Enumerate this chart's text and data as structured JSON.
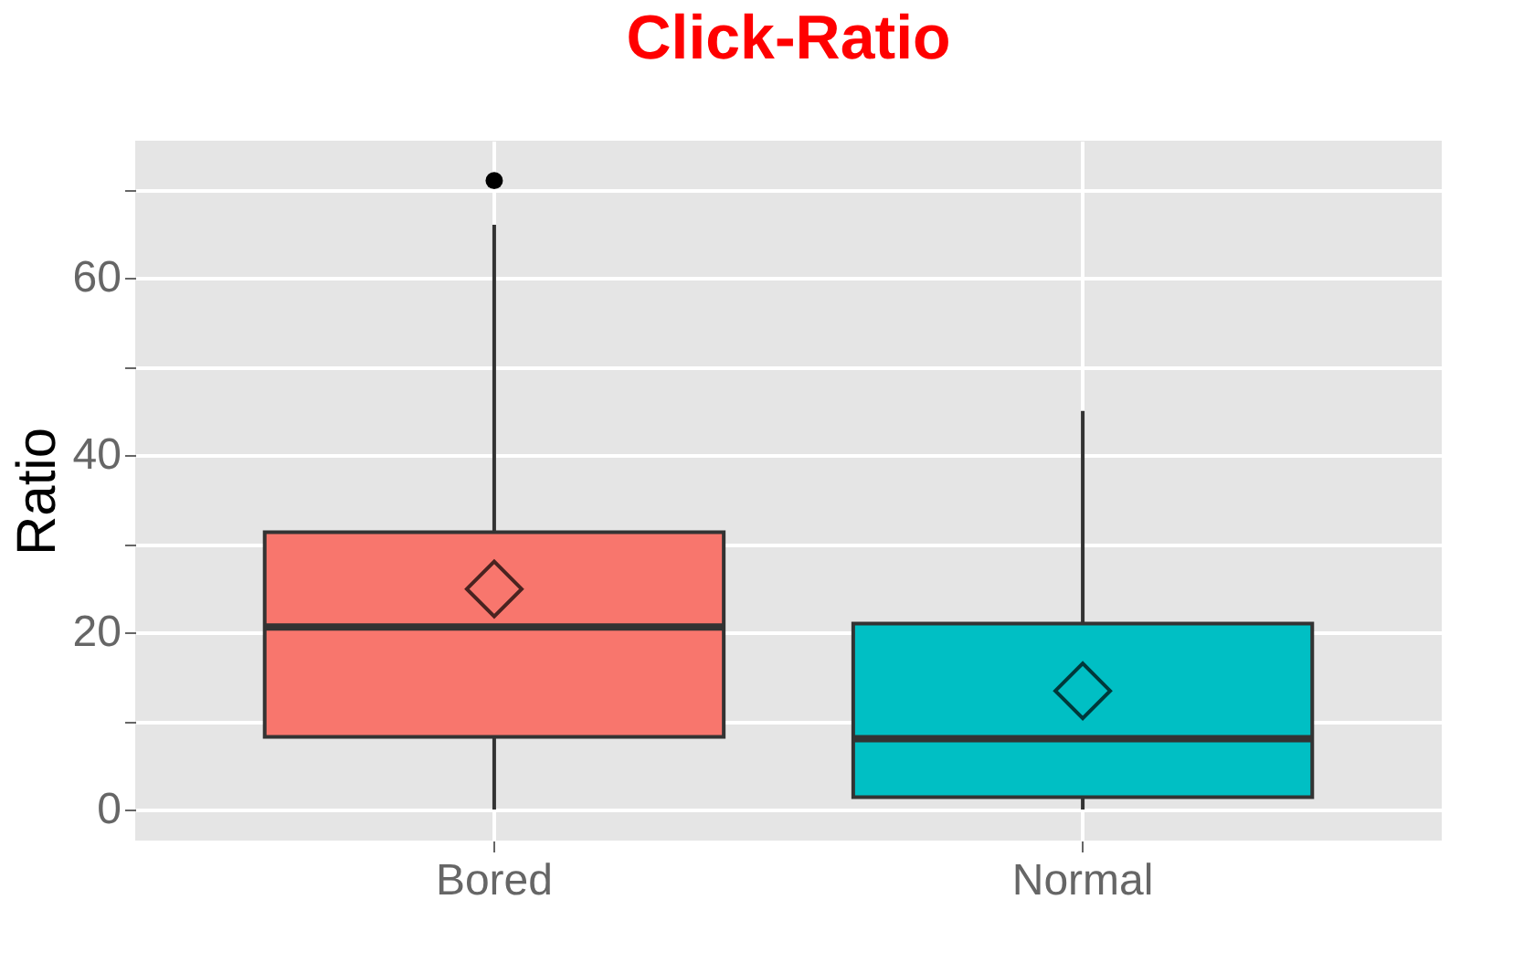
{
  "chart_data": {
    "type": "box",
    "title": "Click-Ratio",
    "ylabel": "Ratio",
    "categories": [
      "Bored",
      "Normal"
    ],
    "colors": [
      "#f8766d",
      "#00bfc4"
    ],
    "boxes": [
      {
        "low": 0,
        "q1": 8.2,
        "median": 20.6,
        "q3": 31.3,
        "high": 66,
        "mean": 24.9,
        "outliers": [
          71
        ]
      },
      {
        "low": 0,
        "q1": 1.4,
        "median": 8,
        "q3": 21,
        "high": 45,
        "mean": 13.4
      }
    ],
    "ylim": [
      -3.5,
      75.5
    ],
    "yticks": [
      0,
      {
        "value": 10,
        "label": null
      },
      20,
      {
        "value": 30,
        "label": null
      },
      40,
      {
        "value": 50,
        "label": null
      },
      60,
      {
        "value": 70,
        "label": null
      }
    ],
    "grid": true
  }
}
